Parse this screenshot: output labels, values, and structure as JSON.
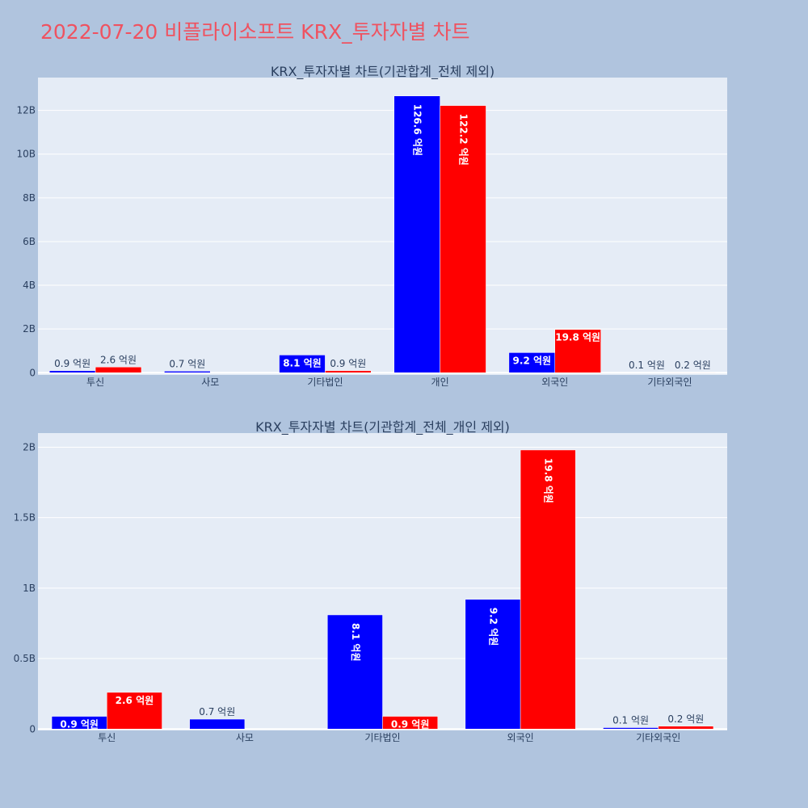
{
  "page": {
    "title": "2022-07-20 비플라이소프트 KRX_투자자별 차트"
  },
  "colors": {
    "series_a": "#0000ff",
    "series_b": "#ff0000",
    "background": "#b0c4de",
    "plot_background": "#e5ecf6",
    "title": "#ef5260",
    "text": "#2a3f5f"
  },
  "chart_data": [
    {
      "type": "bar",
      "title": "KRX_투자자별 차트(기관합계_전체 제외)",
      "categories": [
        "투신",
        "사모",
        "기타법인",
        "개인",
        "외국인",
        "기타외국인"
      ],
      "series": [
        {
          "values": [
            90000000,
            70000000,
            810000000,
            12660000000,
            920000000,
            10000000
          ],
          "labels": [
            "0.9 억원",
            "0.7 억원",
            "8.1 억원",
            "126.6 억원",
            "9.2 억원",
            "0.1 억원"
          ]
        },
        {
          "values": [
            260000000,
            0,
            90000000,
            12220000000,
            1980000000,
            20000000
          ],
          "labels": [
            "2.6 억원",
            "",
            "0.9 억원",
            "122.2 억원",
            "19.8 억원",
            "0.2 억원"
          ]
        }
      ],
      "yticks": [
        {
          "value": 0,
          "label": "0"
        },
        {
          "value": 2000000000,
          "label": "2B"
        },
        {
          "value": 4000000000,
          "label": "4B"
        },
        {
          "value": 6000000000,
          "label": "6B"
        },
        {
          "value": 8000000000,
          "label": "8B"
        },
        {
          "value": 10000000000,
          "label": "10B"
        },
        {
          "value": 12000000000,
          "label": "12B"
        }
      ],
      "ylim": [
        -100000000,
        13500000000
      ],
      "grid": true,
      "legend": "none"
    },
    {
      "type": "bar",
      "title": "KRX_투자자별 차트(기관합계_전체_개인 제외)",
      "categories": [
        "투신",
        "사모",
        "기타법인",
        "외국인",
        "기타외국인"
      ],
      "series": [
        {
          "values": [
            90000000,
            70000000,
            810000000,
            920000000,
            10000000
          ],
          "labels": [
            "0.9 억원",
            "0.7 억원",
            "8.1 억원",
            "9.2 억원",
            "0.1 억원"
          ]
        },
        {
          "values": [
            260000000,
            0,
            90000000,
            1980000000,
            20000000
          ],
          "labels": [
            "2.6 억원",
            "",
            "0.9 억원",
            "19.8 억원",
            "0.2 억원"
          ]
        }
      ],
      "yticks": [
        {
          "value": 0,
          "label": "0"
        },
        {
          "value": 500000000,
          "label": "0.5B"
        },
        {
          "value": 1000000000,
          "label": "1B"
        },
        {
          "value": 1500000000,
          "label": "1.5B"
        },
        {
          "value": 2000000000,
          "label": "2B"
        }
      ],
      "ylim": [
        -10000000,
        2100000000
      ],
      "grid": true,
      "legend": "none"
    }
  ]
}
